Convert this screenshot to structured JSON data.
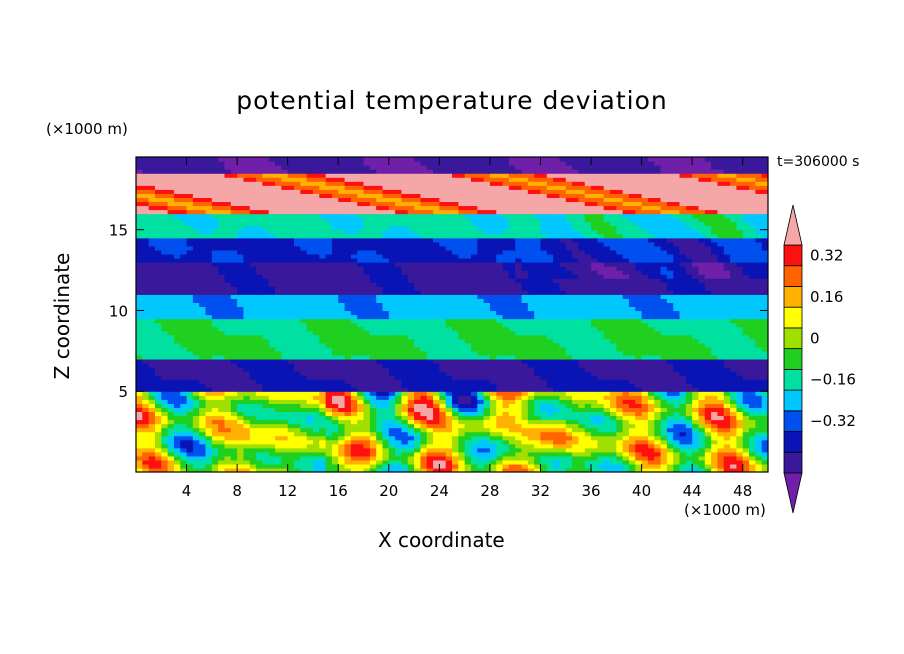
{
  "chart_data": {
    "type": "heatmap",
    "title": "potential temperature deviation",
    "xlabel": "X coordinate",
    "ylabel": "Z coordinate",
    "x_unit": "(×1000 m)",
    "y_unit": "(×1000 m)",
    "time_label": "t=306000 s",
    "xlim": [
      0,
      50
    ],
    "ylim": [
      0,
      19.5
    ],
    "x_ticks": [
      4,
      8,
      12,
      16,
      20,
      24,
      28,
      32,
      36,
      40,
      44,
      48
    ],
    "y_ticks": [
      5,
      10,
      15
    ],
    "colorbar": {
      "levels": [
        -0.48,
        -0.4,
        -0.32,
        -0.24,
        -0.16,
        -0.08,
        0,
        0.08,
        0.16,
        0.24,
        0.32,
        0.4
      ],
      "labels": [
        "0.32",
        "0.16",
        "0",
        "−0.16",
        "−0.32"
      ],
      "label_values": [
        0.32,
        0.16,
        0,
        -0.16,
        -0.32
      ],
      "colors": [
        "#7020a8",
        "#3a189c",
        "#0a14b4",
        "#0050f0",
        "#00c8ff",
        "#00e0a0",
        "#20d020",
        "#a0e000",
        "#ffff00",
        "#ffb000",
        "#ff6400",
        "#ff1010",
        "#f5a7a7"
      ],
      "extend": "both"
    },
    "layers": [
      {
        "z_range": [
          18.5,
          19.5
        ],
        "value": -0.48
      },
      {
        "z_range": [
          16.0,
          18.5
        ],
        "value": 0.45
      },
      {
        "z_range": [
          14.5,
          16.0
        ],
        "value": -0.14
      },
      {
        "z_range": [
          13.0,
          14.5
        ],
        "value": -0.34
      },
      {
        "z_range": [
          11.0,
          13.0
        ],
        "value": -0.42
      },
      {
        "z_range": [
          9.5,
          11.0
        ],
        "value": -0.22
      },
      {
        "z_range": [
          7.0,
          9.5
        ],
        "value": -0.08
      },
      {
        "z_range": [
          5.0,
          7.0
        ],
        "value": -0.4
      },
      {
        "z_range": [
          0.0,
          5.0
        ],
        "value": 0.1
      }
    ]
  },
  "colors": {
    "background": "#ffffff",
    "axis": "#000000"
  }
}
